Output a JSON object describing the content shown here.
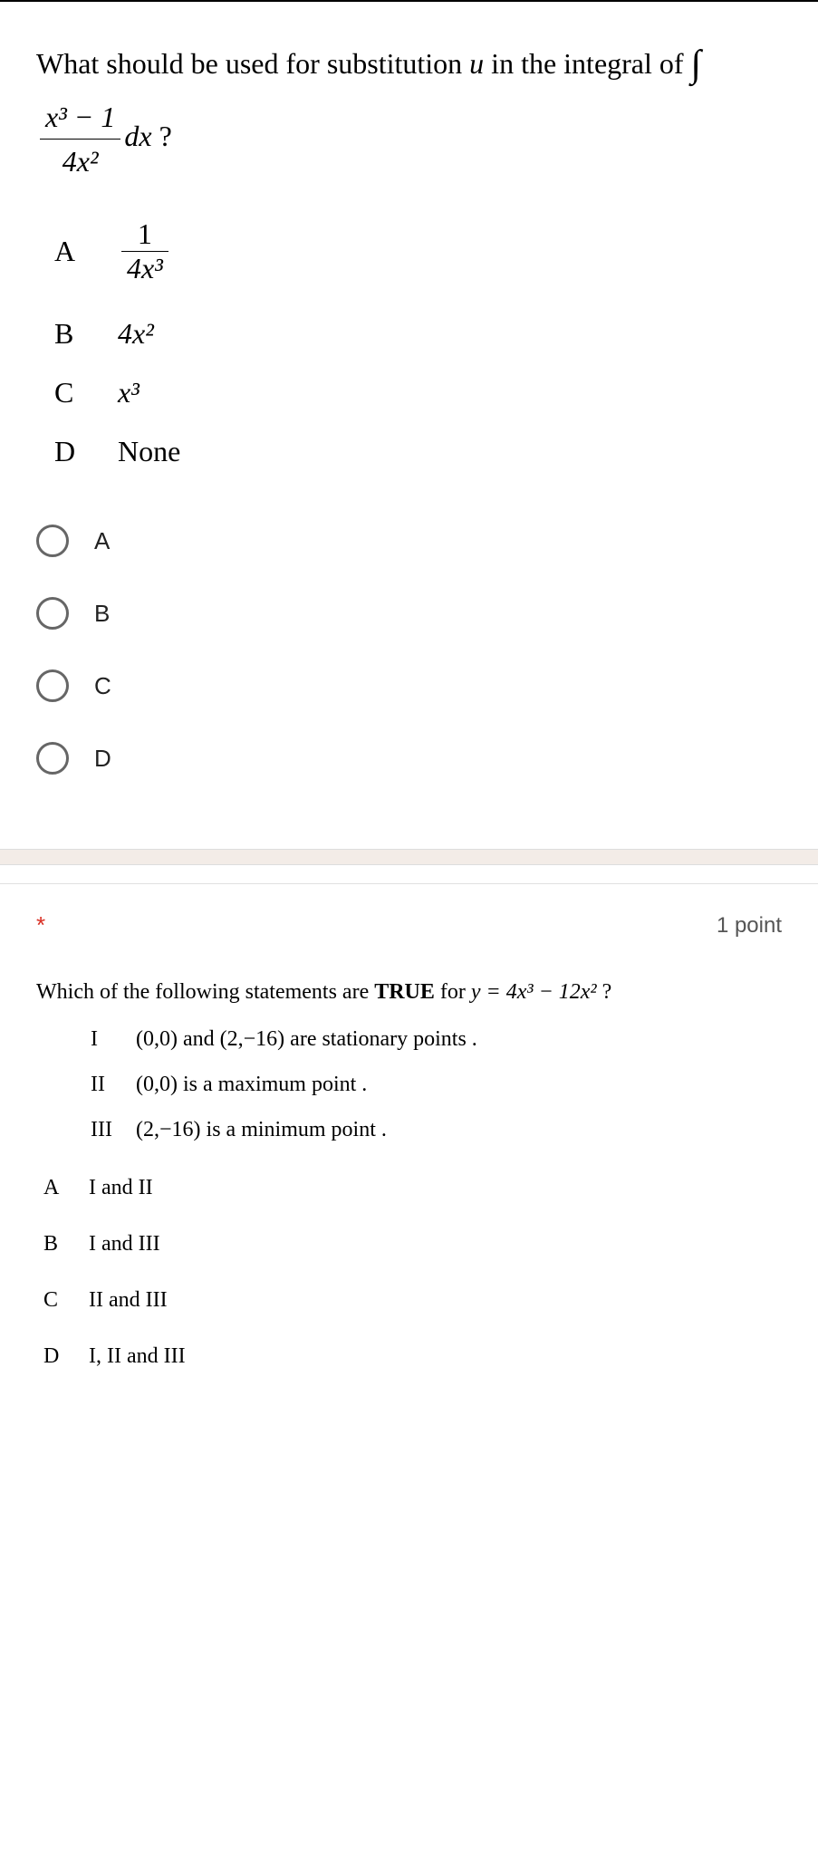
{
  "q1": {
    "text_prefix": "What should be used for substitution ",
    "text_var": "u",
    "text_mid": " in the integral of ",
    "text_suffix": " ?",
    "integrand_num": "x³ − 1",
    "integrand_den": "4x²",
    "dx": "dx",
    "options": {
      "A": {
        "label": "A",
        "frac_num": "1",
        "frac_den": "4x³"
      },
      "B": {
        "label": "B",
        "value": "4x²"
      },
      "C": {
        "label": "C",
        "value": "x³"
      },
      "D": {
        "label": "D",
        "value": "None"
      }
    },
    "radios": [
      "A",
      "B",
      "C",
      "D"
    ]
  },
  "q2": {
    "required_mark": "*",
    "points": "1 point",
    "stem_prefix": "Which of the following statements are ",
    "stem_bold": "TRUE",
    "stem_mid": " for  ",
    "stem_eq": "y = 4x³ − 12x²",
    "stem_suffix": "  ?",
    "statements": {
      "I": {
        "rn": "I",
        "text_a": "(0,0)",
        "text_b": " and ",
        "text_c": "(2,−16)",
        "text_d": " are stationary points ."
      },
      "II": {
        "rn": "II",
        "text_a": "(0,0)",
        "text_d": " is a maximum point ."
      },
      "III": {
        "rn": "III",
        "text_a": "(2,−16)",
        "text_d": " is a minimum point ."
      }
    },
    "options": {
      "A": {
        "label": "A",
        "text": "I and II"
      },
      "B": {
        "label": "B",
        "text": "I and III"
      },
      "C": {
        "label": "C",
        "text": "II and III"
      },
      "D": {
        "label": "D",
        "text": "I, II and III"
      }
    }
  }
}
